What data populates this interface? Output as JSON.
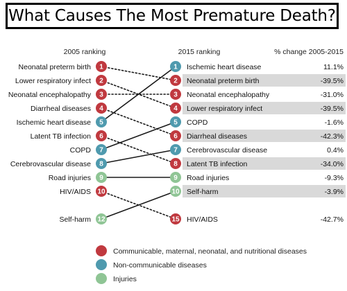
{
  "title": "What Causes The Most Premature Death?",
  "headers": {
    "left": "2005 ranking",
    "middle": "2015 ranking",
    "right": "% change 2005-2015"
  },
  "colors": {
    "communicable": "#c0393f",
    "noncommunicable": "#4f9aae",
    "injuries": "#8fc595",
    "highlight_row": "#d9d9d9"
  },
  "legend": [
    {
      "category": "communicable",
      "label": "Communicable, maternal, neonatal, and nutritional diseases"
    },
    {
      "category": "noncommunicable",
      "label": "Non-communicable diseases"
    },
    {
      "category": "injuries",
      "label": "Injuries"
    }
  ],
  "chart_data": {
    "type": "slope",
    "rankings_2005": [
      {
        "rank": 1,
        "label": "Neonatal preterm birth",
        "category": "communicable"
      },
      {
        "rank": 2,
        "label": "Lower respiratory infect",
        "category": "communicable"
      },
      {
        "rank": 3,
        "label": "Neonatal encephalopathy",
        "category": "communicable"
      },
      {
        "rank": 4,
        "label": "Diarrheal diseases",
        "category": "communicable"
      },
      {
        "rank": 5,
        "label": "Ischemic heart disease",
        "category": "noncommunicable"
      },
      {
        "rank": 6,
        "label": "Latent TB infection",
        "category": "communicable"
      },
      {
        "rank": 7,
        "label": "COPD",
        "category": "noncommunicable"
      },
      {
        "rank": 8,
        "label": "Cerebrovascular disease",
        "category": "noncommunicable"
      },
      {
        "rank": 9,
        "label": "Road injuries",
        "category": "injuries"
      },
      {
        "rank": 10,
        "label": "HIV/AIDS",
        "category": "communicable"
      },
      {
        "rank": 12,
        "label": "Self-harm",
        "category": "injuries"
      }
    ],
    "rankings_2015": [
      {
        "rank": 1,
        "label": "Ischemic heart disease",
        "category": "noncommunicable",
        "change": "11.1%",
        "highlight": false
      },
      {
        "rank": 2,
        "label": "Neonatal preterm birth",
        "category": "communicable",
        "change": "-39.5%",
        "highlight": true
      },
      {
        "rank": 3,
        "label": "Neonatal encephalopathy",
        "category": "communicable",
        "change": "-31.0%",
        "highlight": false
      },
      {
        "rank": 4,
        "label": "Lower respiratory infect",
        "category": "communicable",
        "change": "-39.5%",
        "highlight": true
      },
      {
        "rank": 5,
        "label": "COPD",
        "category": "noncommunicable",
        "change": "-1.6%",
        "highlight": false
      },
      {
        "rank": 6,
        "label": "Diarrheal diseases",
        "category": "communicable",
        "change": "-42.3%",
        "highlight": true
      },
      {
        "rank": 7,
        "label": "Cerebrovascular disease",
        "category": "noncommunicable",
        "change": "0.4%",
        "highlight": false
      },
      {
        "rank": 8,
        "label": "Latent TB infection",
        "category": "communicable",
        "change": "-34.0%",
        "highlight": true
      },
      {
        "rank": 9,
        "label": "Road injuries",
        "category": "injuries",
        "change": "-9.3%",
        "highlight": false
      },
      {
        "rank": 10,
        "label": "Self-harm",
        "category": "injuries",
        "change": "-3.9%",
        "highlight": true
      },
      {
        "rank": 15,
        "label": "HIV/AIDS",
        "category": "communicable",
        "change": "-42.7%",
        "highlight": false
      }
    ],
    "links": [
      {
        "from": 1,
        "to": 2,
        "style": "dotted"
      },
      {
        "from": 2,
        "to": 4,
        "style": "dotted"
      },
      {
        "from": 3,
        "to": 3,
        "style": "dotted"
      },
      {
        "from": 4,
        "to": 6,
        "style": "dotted"
      },
      {
        "from": 5,
        "to": 1,
        "style": "solid"
      },
      {
        "from": 6,
        "to": 8,
        "style": "dotted"
      },
      {
        "from": 7,
        "to": 5,
        "style": "solid"
      },
      {
        "from": 8,
        "to": 7,
        "style": "solid"
      },
      {
        "from": 9,
        "to": 9,
        "style": "solid"
      },
      {
        "from": 10,
        "to": 15,
        "style": "dotted"
      },
      {
        "from": 12,
        "to": 10,
        "style": "solid"
      }
    ]
  }
}
